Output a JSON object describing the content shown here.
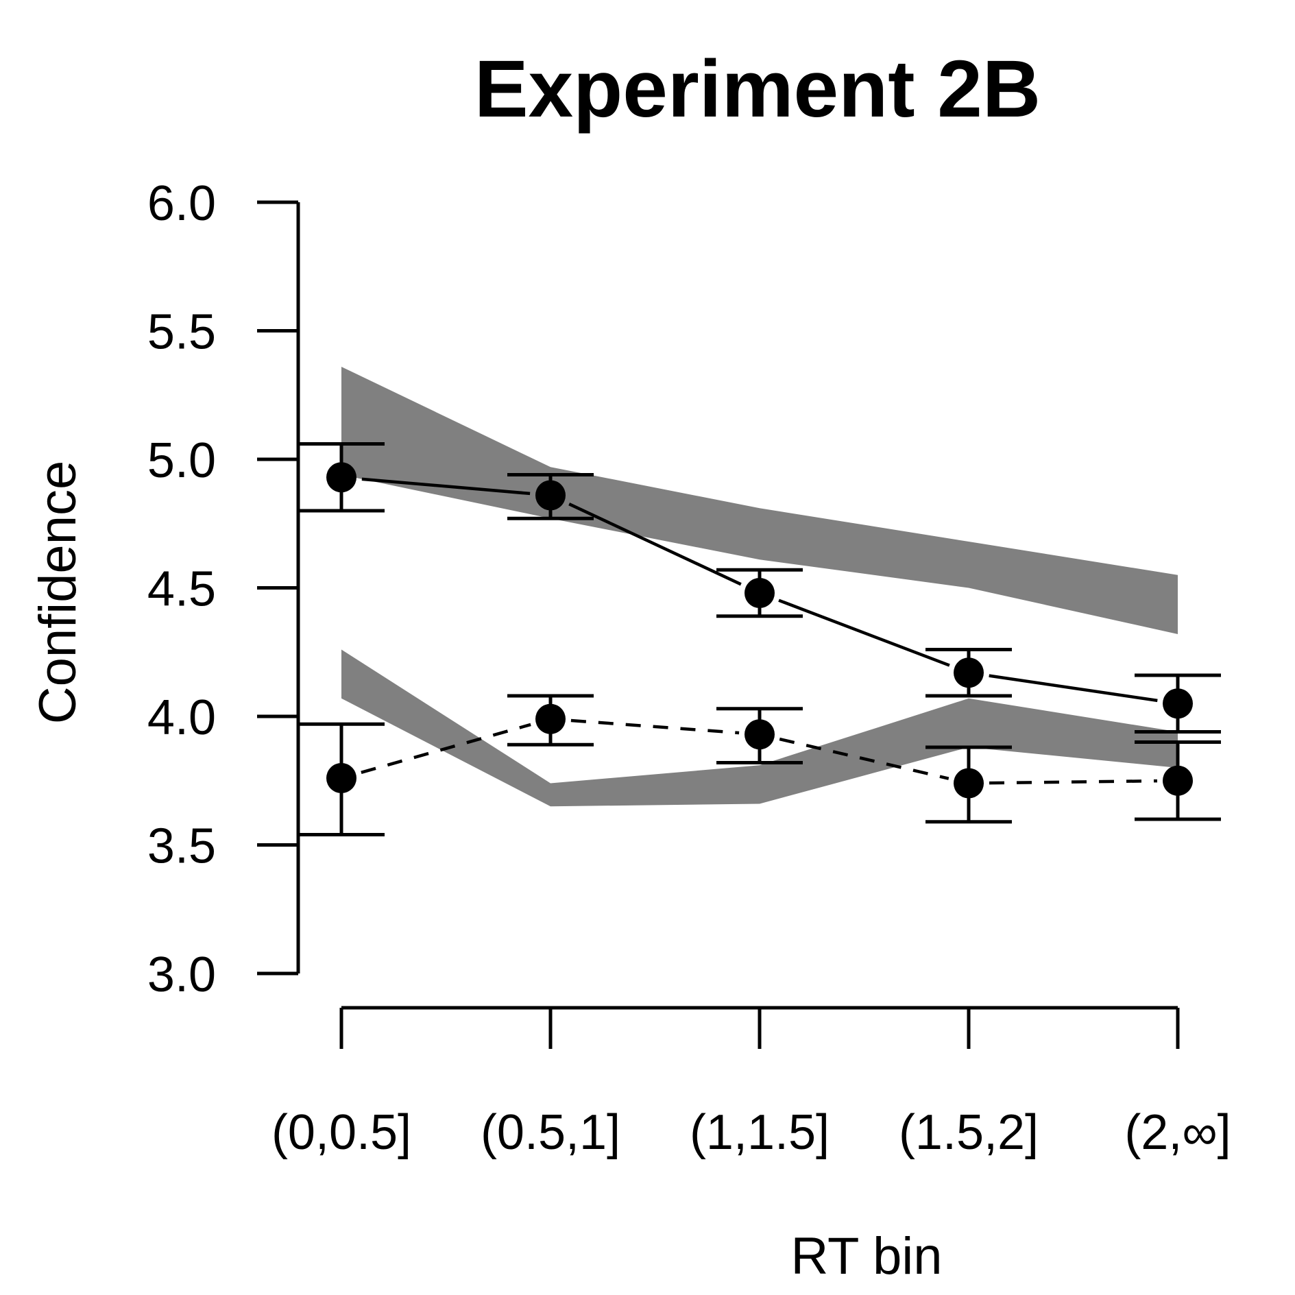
{
  "chart_data": {
    "type": "line",
    "title": "Experiment 2B",
    "xlabel": "RT bin",
    "ylabel": "Confidence",
    "categories": [
      "(0,0.5]",
      "(0.5,1]",
      "(1,1.5]",
      "(1.5,2]",
      "(2,∞]"
    ],
    "ylim": [
      3.0,
      6.0
    ],
    "yticks": [
      "3.0",
      "3.5",
      "4.0",
      "4.5",
      "5.0",
      "5.5",
      "6.0"
    ],
    "grid": false,
    "series": [
      {
        "line_style": "solid",
        "values": [
          4.93,
          4.86,
          4.48,
          4.17,
          4.05
        ],
        "error_low": [
          4.8,
          4.77,
          4.39,
          4.08,
          3.94
        ],
        "error_high": [
          5.06,
          4.94,
          4.57,
          4.26,
          4.16
        ]
      },
      {
        "line_style": "dashed",
        "values": [
          3.76,
          3.99,
          3.93,
          3.74,
          3.75
        ],
        "error_low": [
          3.54,
          3.89,
          3.82,
          3.59,
          3.6
        ],
        "error_high": [
          3.97,
          4.08,
          4.03,
          3.88,
          3.9
        ]
      }
    ],
    "bands": [
      {
        "color": "#808080",
        "upper": [
          5.36,
          4.97,
          4.81,
          4.68,
          4.55
        ],
        "lower": [
          4.94,
          4.77,
          4.61,
          4.5,
          4.32
        ]
      },
      {
        "color": "#808080",
        "upper": [
          4.26,
          3.74,
          3.81,
          4.07,
          3.94
        ],
        "lower": [
          4.07,
          3.65,
          3.66,
          3.88,
          3.8
        ]
      }
    ],
    "colors": {
      "points": "#000000",
      "band": "#808080",
      "axes": "#000000"
    }
  }
}
